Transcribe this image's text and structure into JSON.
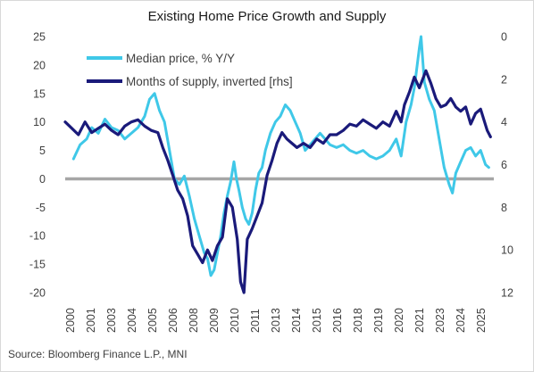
{
  "chart_data": {
    "type": "line",
    "title": "Existing Home Price Growth and Supply",
    "source": "Source: Bloomberg Finance L.P., MNI",
    "x_ticks": [
      "2000",
      "2001",
      "2003",
      "2004",
      "2005",
      "2006",
      "2008",
      "2009",
      "2010",
      "2011",
      "2013",
      "2014",
      "2015",
      "2016",
      "2018",
      "2019",
      "2020",
      "2021",
      "2023",
      "2024",
      "2025"
    ],
    "y_left": {
      "ticks": [
        25,
        20,
        15,
        10,
        5,
        0,
        -5,
        -10,
        -15,
        -20
      ],
      "range": [
        -20,
        25
      ]
    },
    "y_right": {
      "ticks": [
        0,
        2,
        4,
        6,
        8,
        10,
        12
      ],
      "range": [
        0,
        12
      ],
      "inverted": true,
      "label_in_legend": "[rhs]"
    },
    "series": [
      {
        "name": "Median price, % Y/Y",
        "axis": "left",
        "color": "#3fc8e8",
        "points": [
          [
            2000.5,
            3.5
          ],
          [
            2000.9,
            6
          ],
          [
            2001.3,
            7
          ],
          [
            2001.6,
            9
          ],
          [
            2002.0,
            8
          ],
          [
            2002.4,
            10.5
          ],
          [
            2002.8,
            9
          ],
          [
            2003.2,
            8.5
          ],
          [
            2003.6,
            7
          ],
          [
            2004.0,
            8
          ],
          [
            2004.4,
            9
          ],
          [
            2004.8,
            11
          ],
          [
            2005.1,
            14
          ],
          [
            2005.4,
            15
          ],
          [
            2005.7,
            12
          ],
          [
            2006.0,
            10
          ],
          [
            2006.3,
            5
          ],
          [
            2006.6,
            0
          ],
          [
            2006.9,
            -1
          ],
          [
            2007.2,
            0.5
          ],
          [
            2007.5,
            -3
          ],
          [
            2007.8,
            -7
          ],
          [
            2008.1,
            -10
          ],
          [
            2008.4,
            -13
          ],
          [
            2008.6,
            -14
          ],
          [
            2008.8,
            -17
          ],
          [
            2009.0,
            -16
          ],
          [
            2009.2,
            -13
          ],
          [
            2009.4,
            -10
          ],
          [
            2009.6,
            -6
          ],
          [
            2009.8,
            -3
          ],
          [
            2010.0,
            -0.5
          ],
          [
            2010.2,
            3
          ],
          [
            2010.35,
            0
          ],
          [
            2010.5,
            -2
          ],
          [
            2010.7,
            -5
          ],
          [
            2010.9,
            -7
          ],
          [
            2011.1,
            -8
          ],
          [
            2011.3,
            -6
          ],
          [
            2011.5,
            -2
          ],
          [
            2011.7,
            1
          ],
          [
            2011.9,
            2
          ],
          [
            2012.1,
            5
          ],
          [
            2012.4,
            8
          ],
          [
            2012.7,
            10
          ],
          [
            2013.0,
            11
          ],
          [
            2013.3,
            13
          ],
          [
            2013.6,
            12
          ],
          [
            2013.9,
            10
          ],
          [
            2014.2,
            8
          ],
          [
            2014.5,
            5
          ],
          [
            2014.8,
            6
          ],
          [
            2015.1,
            7
          ],
          [
            2015.4,
            8
          ],
          [
            2015.7,
            7
          ],
          [
            2016.0,
            6
          ],
          [
            2016.4,
            5.5
          ],
          [
            2016.8,
            6
          ],
          [
            2017.2,
            5
          ],
          [
            2017.6,
            4.5
          ],
          [
            2018.0,
            5
          ],
          [
            2018.4,
            4
          ],
          [
            2018.8,
            3.5
          ],
          [
            2019.2,
            4
          ],
          [
            2019.6,
            5
          ],
          [
            2020.0,
            7
          ],
          [
            2020.3,
            4
          ],
          [
            2020.6,
            10
          ],
          [
            2020.9,
            13
          ],
          [
            2021.1,
            16
          ],
          [
            2021.4,
            23
          ],
          [
            2021.5,
            25
          ],
          [
            2021.7,
            17
          ],
          [
            2022.0,
            14
          ],
          [
            2022.3,
            12
          ],
          [
            2022.6,
            7
          ],
          [
            2022.9,
            2
          ],
          [
            2023.2,
            -1
          ],
          [
            2023.4,
            -2.5
          ],
          [
            2023.6,
            1
          ],
          [
            2023.9,
            3
          ],
          [
            2024.2,
            5
          ],
          [
            2024.5,
            5.5
          ],
          [
            2024.8,
            4
          ],
          [
            2025.1,
            5
          ],
          [
            2025.4,
            2.5
          ],
          [
            2025.6,
            2
          ]
        ]
      },
      {
        "name": "Months of supply, inverted [rhs]",
        "axis": "right",
        "color": "#1a1a7a",
        "points": [
          [
            2000.0,
            4.0
          ],
          [
            2000.4,
            4.3
          ],
          [
            2000.8,
            4.6
          ],
          [
            2001.2,
            4.0
          ],
          [
            2001.6,
            4.5
          ],
          [
            2002.0,
            4.3
          ],
          [
            2002.4,
            4.1
          ],
          [
            2002.8,
            4.4
          ],
          [
            2003.2,
            4.6
          ],
          [
            2003.6,
            4.2
          ],
          [
            2004.0,
            4.0
          ],
          [
            2004.4,
            3.9
          ],
          [
            2004.8,
            4.2
          ],
          [
            2005.2,
            4.4
          ],
          [
            2005.6,
            4.5
          ],
          [
            2005.9,
            5.2
          ],
          [
            2006.2,
            5.8
          ],
          [
            2006.5,
            6.5
          ],
          [
            2006.8,
            7.2
          ],
          [
            2007.1,
            7.6
          ],
          [
            2007.4,
            8.4
          ],
          [
            2007.7,
            9.8
          ],
          [
            2008.0,
            10.2
          ],
          [
            2008.3,
            10.6
          ],
          [
            2008.6,
            10.0
          ],
          [
            2008.9,
            10.5
          ],
          [
            2009.2,
            9.8
          ],
          [
            2009.5,
            9.4
          ],
          [
            2009.8,
            7.6
          ],
          [
            2010.1,
            8.0
          ],
          [
            2010.4,
            9.5
          ],
          [
            2010.6,
            11.5
          ],
          [
            2010.8,
            12.0
          ],
          [
            2011.0,
            9.5
          ],
          [
            2011.3,
            9.0
          ],
          [
            2011.6,
            8.4
          ],
          [
            2011.9,
            7.8
          ],
          [
            2012.2,
            6.5
          ],
          [
            2012.5,
            5.8
          ],
          [
            2012.8,
            5.0
          ],
          [
            2013.1,
            4.5
          ],
          [
            2013.4,
            4.8
          ],
          [
            2013.7,
            5.0
          ],
          [
            2014.0,
            5.2
          ],
          [
            2014.4,
            5.0
          ],
          [
            2014.8,
            5.2
          ],
          [
            2015.2,
            4.8
          ],
          [
            2015.6,
            5.0
          ],
          [
            2016.0,
            4.6
          ],
          [
            2016.4,
            4.6
          ],
          [
            2016.8,
            4.4
          ],
          [
            2017.2,
            4.1
          ],
          [
            2017.6,
            4.2
          ],
          [
            2018.0,
            3.9
          ],
          [
            2018.4,
            4.1
          ],
          [
            2018.8,
            4.3
          ],
          [
            2019.2,
            4.0
          ],
          [
            2019.6,
            4.2
          ],
          [
            2020.0,
            3.5
          ],
          [
            2020.3,
            4.0
          ],
          [
            2020.5,
            3.2
          ],
          [
            2020.8,
            2.6
          ],
          [
            2021.1,
            1.9
          ],
          [
            2021.4,
            2.4
          ],
          [
            2021.8,
            1.6
          ],
          [
            2022.1,
            2.2
          ],
          [
            2022.4,
            2.9
          ],
          [
            2022.7,
            3.3
          ],
          [
            2023.0,
            3.2
          ],
          [
            2023.3,
            2.9
          ],
          [
            2023.6,
            3.3
          ],
          [
            2023.9,
            3.5
          ],
          [
            2024.2,
            3.3
          ],
          [
            2024.5,
            4.1
          ],
          [
            2024.8,
            3.6
          ],
          [
            2025.1,
            3.4
          ],
          [
            2025.3,
            3.9
          ],
          [
            2025.5,
            4.4
          ],
          [
            2025.7,
            4.7
          ]
        ]
      }
    ],
    "zero_line": {
      "color": "#a6a6a6"
    }
  }
}
